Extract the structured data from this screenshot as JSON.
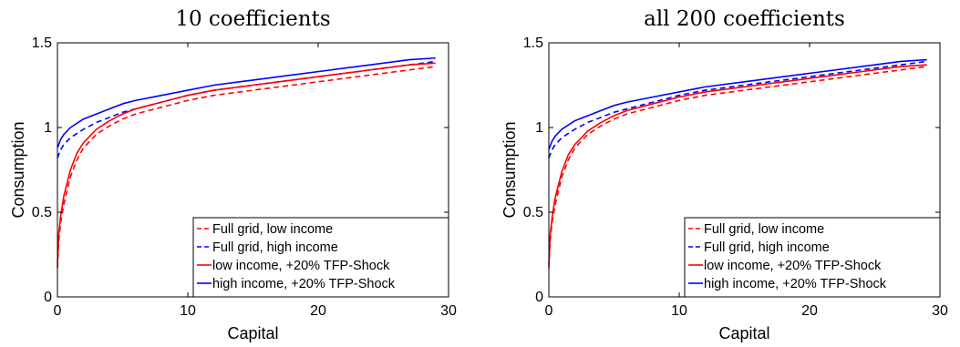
{
  "chart_data": [
    {
      "type": "line",
      "title": "10 coefficients",
      "xlabel": "Capital",
      "ylabel": "Consumption",
      "xlim": [
        0,
        30
      ],
      "ylim": [
        0,
        1.5
      ],
      "xticks": [
        "0",
        "10",
        "20",
        "30"
      ],
      "yticks": [
        "0",
        "0.5",
        "1",
        "1.5"
      ],
      "grid": false,
      "legend_position": "bottom-right",
      "series": [
        {
          "name": "Full grid, low income",
          "color": "#ff0000",
          "style": "dashed",
          "x": [
            0,
            0.1,
            0.25,
            0.5,
            1,
            1.5,
            2,
            3,
            4,
            5,
            6,
            8,
            10,
            12,
            15,
            18,
            21,
            24,
            27,
            29
          ],
          "y": [
            0.17,
            0.33,
            0.44,
            0.55,
            0.71,
            0.81,
            0.88,
            0.96,
            1.01,
            1.05,
            1.08,
            1.12,
            1.16,
            1.19,
            1.22,
            1.25,
            1.28,
            1.31,
            1.34,
            1.36
          ]
        },
        {
          "name": "Full grid, high income",
          "color": "#0000ff",
          "style": "dashed",
          "x": [
            0,
            0.25,
            0.5,
            1,
            2,
            3,
            4,
            5,
            6,
            8,
            10,
            12,
            15,
            18,
            21,
            24,
            27,
            29
          ],
          "y": [
            0.82,
            0.87,
            0.9,
            0.94,
            0.99,
            1.03,
            1.06,
            1.09,
            1.11,
            1.15,
            1.19,
            1.22,
            1.25,
            1.28,
            1.31,
            1.34,
            1.37,
            1.39
          ]
        },
        {
          "name": "low income, +20% TFP-Shock",
          "color": "#ff0000",
          "style": "solid",
          "x": [
            0,
            0.1,
            0.25,
            0.5,
            1,
            1.5,
            2,
            3,
            4,
            5,
            6,
            8,
            10,
            12,
            15,
            18,
            21,
            24,
            27,
            29
          ],
          "y": [
            0.2,
            0.37,
            0.48,
            0.6,
            0.75,
            0.85,
            0.91,
            0.99,
            1.04,
            1.08,
            1.11,
            1.15,
            1.19,
            1.22,
            1.25,
            1.28,
            1.31,
            1.34,
            1.37,
            1.38
          ]
        },
        {
          "name": "high income, +20% TFP-Shock",
          "color": "#0000ff",
          "style": "solid",
          "x": [
            0,
            0.25,
            0.5,
            1,
            2,
            3,
            4,
            5,
            6,
            8,
            10,
            12,
            15,
            18,
            21,
            24,
            27,
            29
          ],
          "y": [
            0.88,
            0.93,
            0.96,
            1.0,
            1.05,
            1.08,
            1.11,
            1.14,
            1.16,
            1.19,
            1.22,
            1.25,
            1.28,
            1.31,
            1.34,
            1.37,
            1.4,
            1.41
          ]
        }
      ]
    },
    {
      "type": "line",
      "title": "all 200 coefficients",
      "xlabel": "Capital",
      "ylabel": "Consumption",
      "xlim": [
        0,
        30
      ],
      "ylim": [
        0,
        1.5
      ],
      "xticks": [
        "0",
        "10",
        "20",
        "30"
      ],
      "yticks": [
        "0",
        "0.5",
        "1",
        "1.5"
      ],
      "grid": false,
      "legend_position": "bottom-right",
      "series": [
        {
          "name": "Full grid, low income",
          "color": "#ff0000",
          "style": "dashed",
          "x": [
            0,
            0.1,
            0.25,
            0.5,
            1,
            1.5,
            2,
            3,
            4,
            5,
            6,
            8,
            10,
            12,
            15,
            18,
            21,
            24,
            27,
            29
          ],
          "y": [
            0.17,
            0.33,
            0.44,
            0.55,
            0.71,
            0.81,
            0.88,
            0.96,
            1.01,
            1.05,
            1.08,
            1.12,
            1.16,
            1.19,
            1.22,
            1.25,
            1.28,
            1.31,
            1.34,
            1.36
          ]
        },
        {
          "name": "Full grid, high income",
          "color": "#0000ff",
          "style": "dashed",
          "x": [
            0,
            0.25,
            0.5,
            1,
            2,
            3,
            4,
            5,
            6,
            8,
            10,
            12,
            15,
            18,
            21,
            24,
            27,
            29
          ],
          "y": [
            0.82,
            0.87,
            0.9,
            0.94,
            0.99,
            1.03,
            1.06,
            1.09,
            1.11,
            1.15,
            1.19,
            1.22,
            1.25,
            1.28,
            1.31,
            1.34,
            1.37,
            1.39
          ]
        },
        {
          "name": "low income, +20% TFP-Shock",
          "color": "#ff0000",
          "style": "solid",
          "x": [
            0,
            0.1,
            0.25,
            0.5,
            1,
            1.5,
            2,
            3,
            4,
            5,
            6,
            8,
            10,
            12,
            15,
            18,
            21,
            24,
            27,
            29
          ],
          "y": [
            0.19,
            0.36,
            0.47,
            0.59,
            0.74,
            0.84,
            0.9,
            0.98,
            1.03,
            1.07,
            1.1,
            1.14,
            1.18,
            1.21,
            1.24,
            1.27,
            1.3,
            1.33,
            1.36,
            1.37
          ]
        },
        {
          "name": "high income, +20% TFP-Shock",
          "color": "#0000ff",
          "style": "solid",
          "x": [
            0,
            0.25,
            0.5,
            1,
            2,
            3,
            4,
            5,
            6,
            8,
            10,
            12,
            15,
            18,
            21,
            24,
            27,
            29
          ],
          "y": [
            0.87,
            0.92,
            0.95,
            0.99,
            1.04,
            1.07,
            1.1,
            1.13,
            1.15,
            1.18,
            1.21,
            1.24,
            1.27,
            1.3,
            1.33,
            1.36,
            1.39,
            1.4
          ]
        }
      ]
    }
  ]
}
